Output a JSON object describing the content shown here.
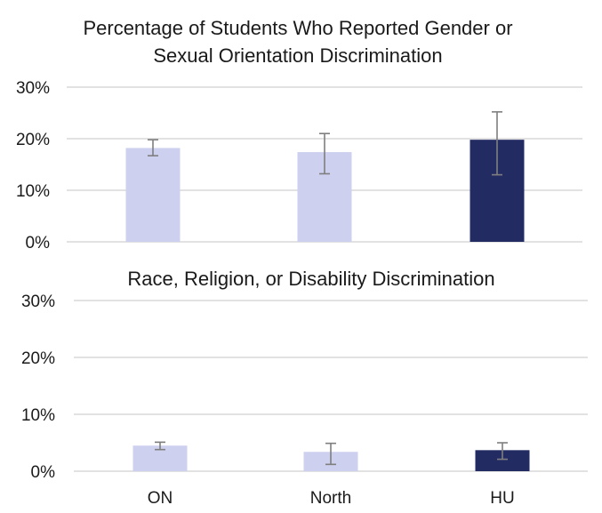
{
  "chart_data": [
    {
      "type": "bar",
      "title": "Percentage of Students Who Reported Gender or Sexual Orientation Discrimination",
      "categories": [
        "ON",
        "North",
        "HU"
      ],
      "values": [
        18.2,
        17.4,
        19.8
      ],
      "error_low": [
        16.7,
        13.2,
        13.0
      ],
      "error_high": [
        19.8,
        21.0,
        25.2
      ],
      "ylim": [
        0,
        30
      ],
      "yticks": [
        0,
        10,
        20,
        30
      ],
      "ytick_labels": [
        "0%",
        "10%",
        "20%",
        "30%"
      ],
      "grid": true,
      "colors": [
        "#cdd0ee",
        "#cdd0ee",
        "#232b63"
      ]
    },
    {
      "type": "bar",
      "title": "Race, Religion, or Disability Discrimination",
      "categories": [
        "ON",
        "North",
        "HU"
      ],
      "values": [
        4.5,
        3.4,
        3.7
      ],
      "error_low": [
        3.8,
        1.2,
        2.1
      ],
      "error_high": [
        5.1,
        4.9,
        5.0
      ],
      "ylim": [
        0,
        30
      ],
      "yticks": [
        0,
        10,
        20,
        30
      ],
      "ytick_labels": [
        "0%",
        "10%",
        "20%",
        "30%"
      ],
      "grid": true,
      "colors": [
        "#cdd0ee",
        "#cdd0ee",
        "#232b63"
      ]
    }
  ],
  "style": {
    "grid_color": "#d9d9d9",
    "error_color": "#7f7f7f"
  }
}
